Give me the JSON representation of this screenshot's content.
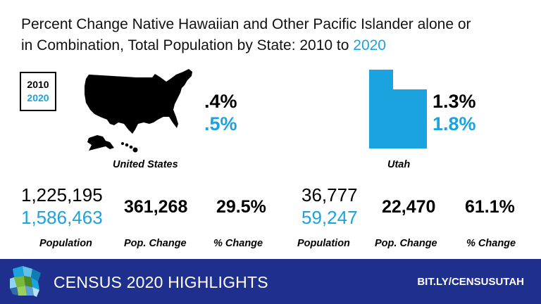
{
  "title": {
    "line1": "Percent Change Native Hawaiian and Other Pacific Islander alone or",
    "line2_prefix": "in Combination, Total Population by State: 2010 to ",
    "line2_highlight": "2020"
  },
  "legend": {
    "year1": "2010",
    "year2": "2020"
  },
  "us": {
    "name": "United States",
    "pct_2010": ".4%",
    "pct_2020": ".5%",
    "population_2010": "1,225,195",
    "population_2020": "1,586,463",
    "pop_change": "361,268",
    "pct_change": "29.5%"
  },
  "utah": {
    "name": "Utah",
    "pct_2010": "1.3%",
    "pct_2020": "1.8%",
    "population_2010": "36,777",
    "population_2020": "59,247",
    "pop_change": "22,470",
    "pct_change": "61.1%"
  },
  "labels": {
    "population": "Population",
    "pop_change": "Pop. Change",
    "pct_change": "% Change"
  },
  "footer": {
    "title": "CENSUS 2020 HIGHLIGHTS",
    "link": "BIT.LY/CENSUSUTAH"
  },
  "colors": {
    "accent": "#1aa3de",
    "footer_bg": "#1e2f8e",
    "text": "#000000"
  }
}
